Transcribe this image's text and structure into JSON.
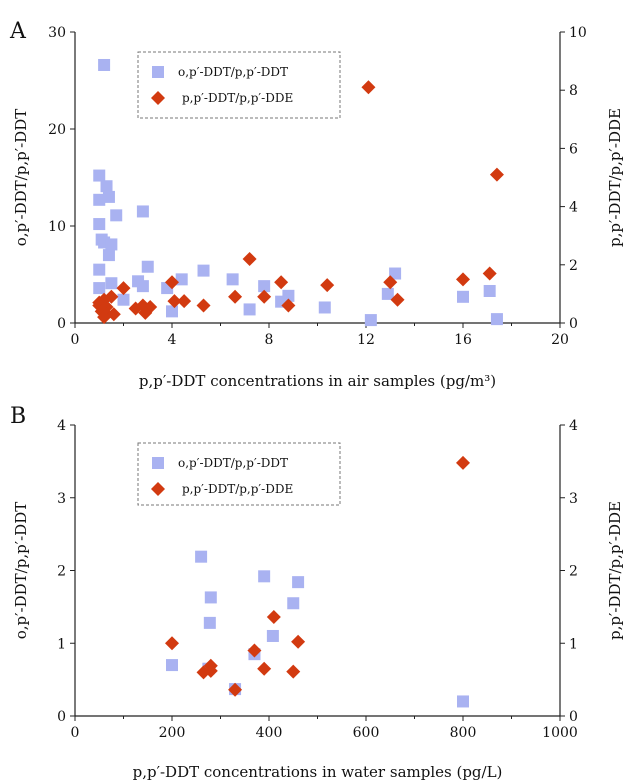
{
  "chart_data": [
    {
      "panel_label": "A",
      "type": "scatter",
      "xlabel": "p,p′-DDT concentrations in air samples (pg/m³)",
      "ylabel": "o,p′-DDT/p,p′-DDT",
      "y2label": "p,p′-DDT/p,p′-DDE",
      "xlim": [
        0,
        20
      ],
      "ylim": [
        0,
        30
      ],
      "y2lim": [
        0,
        10
      ],
      "xticks": [
        "0",
        "4",
        "8",
        "12",
        "16",
        "20"
      ],
      "yticks": [
        "0",
        "10",
        "20",
        "30"
      ],
      "y2ticks": [
        "0",
        "2",
        "4",
        "6",
        "8",
        "10"
      ],
      "legend_position": "top-center",
      "series": [
        {
          "name": "o,p′-DDT/p,p′-DDT",
          "marker": "square",
          "color": "#a9b2f1",
          "axis": "left",
          "points": [
            [
              1.2,
              26.6
            ],
            [
              1.0,
              15.2
            ],
            [
              1.3,
              14.1
            ],
            [
              1.4,
              13.0
            ],
            [
              1.0,
              12.7
            ],
            [
              2.8,
              11.5
            ],
            [
              1.7,
              11.1
            ],
            [
              1.0,
              10.2
            ],
            [
              1.1,
              8.6
            ],
            [
              1.2,
              8.3
            ],
            [
              1.5,
              8.1
            ],
            [
              1.4,
              7.0
            ],
            [
              1.0,
              5.5
            ],
            [
              3.0,
              5.8
            ],
            [
              5.3,
              5.4
            ],
            [
              13.2,
              5.1
            ],
            [
              6.5,
              4.5
            ],
            [
              4.4,
              4.5
            ],
            [
              1.5,
              4.1
            ],
            [
              2.6,
              4.3
            ],
            [
              2.8,
              3.8
            ],
            [
              3.8,
              3.6
            ],
            [
              7.8,
              3.8
            ],
            [
              1.0,
              3.6
            ],
            [
              12.9,
              3.0
            ],
            [
              17.1,
              3.3
            ],
            [
              16.0,
              2.7
            ],
            [
              8.8,
              2.8
            ],
            [
              8.5,
              2.2
            ],
            [
              2.0,
              2.4
            ],
            [
              7.2,
              1.4
            ],
            [
              10.3,
              1.6
            ],
            [
              4.0,
              1.2
            ],
            [
              12.2,
              0.3
            ],
            [
              17.4,
              0.4
            ]
          ]
        },
        {
          "name": "p,p′-DDT/p,p′-DDE",
          "marker": "diamond",
          "color": "#d23a10",
          "axis": "right",
          "points": [
            [
              12.1,
              8.1
            ],
            [
              17.4,
              5.1
            ],
            [
              7.2,
              2.2
            ],
            [
              13.0,
              1.4
            ],
            [
              10.4,
              1.3
            ],
            [
              8.5,
              1.4
            ],
            [
              4.0,
              1.4
            ],
            [
              17.1,
              1.7
            ],
            [
              16.0,
              1.5
            ],
            [
              2.0,
              1.2
            ],
            [
              1.5,
              0.9
            ],
            [
              1.2,
              0.8
            ],
            [
              1.0,
              0.7
            ],
            [
              1.0,
              0.6
            ],
            [
              1.3,
              0.55
            ],
            [
              6.6,
              0.9
            ],
            [
              7.8,
              0.9
            ],
            [
              4.5,
              0.75
            ],
            [
              4.1,
              0.75
            ],
            [
              13.3,
              0.8
            ],
            [
              8.8,
              0.6
            ],
            [
              5.3,
              0.6
            ],
            [
              2.5,
              0.5
            ],
            [
              2.8,
              0.6
            ],
            [
              3.1,
              0.55
            ],
            [
              1.1,
              0.4
            ],
            [
              1.3,
              0.3
            ],
            [
              1.6,
              0.3
            ],
            [
              2.9,
              0.35
            ],
            [
              1.2,
              0.2
            ]
          ]
        }
      ]
    },
    {
      "panel_label": "B",
      "type": "scatter",
      "xlabel": "p,p′-DDT concentrations in water samples (pg/L)",
      "ylabel": "o,p′-DDT/p,p′-DDT",
      "y2label": "p,p′-DDT/p,p′-DDE",
      "xlim": [
        0,
        1000
      ],
      "ylim": [
        0,
        4
      ],
      "y2lim": [
        0,
        4
      ],
      "xticks": [
        "0",
        "200",
        "400",
        "600",
        "800",
        "1000"
      ],
      "yticks": [
        "0",
        "1",
        "2",
        "3",
        "4"
      ],
      "y2ticks": [
        "0",
        "1",
        "2",
        "3",
        "4"
      ],
      "legend_position": "top-center",
      "series": [
        {
          "name": "o,p′-DDT/p,p′-DDT",
          "marker": "square",
          "color": "#a9b2f1",
          "axis": "left",
          "points": [
            [
              260,
              2.19
            ],
            [
              390,
              1.92
            ],
            [
              460,
              1.84
            ],
            [
              280,
              1.63
            ],
            [
              450,
              1.55
            ],
            [
              278,
              1.28
            ],
            [
              408,
              1.1
            ],
            [
              370,
              0.85
            ],
            [
              200,
              0.7
            ],
            [
              275,
              0.65
            ],
            [
              330,
              0.37
            ],
            [
              800,
              0.2
            ]
          ]
        },
        {
          "name": "p,p′-DDT/p,p′-DDE",
          "marker": "diamond",
          "color": "#d23a10",
          "axis": "right",
          "points": [
            [
              800,
              3.48
            ],
            [
              410,
              1.36
            ],
            [
              460,
              1.02
            ],
            [
              200,
              1.0
            ],
            [
              370,
              0.9
            ],
            [
              280,
              0.69
            ],
            [
              390,
              0.65
            ],
            [
              265,
              0.6
            ],
            [
              280,
              0.62
            ],
            [
              450,
              0.61
            ],
            [
              330,
              0.36
            ]
          ]
        }
      ]
    }
  ]
}
